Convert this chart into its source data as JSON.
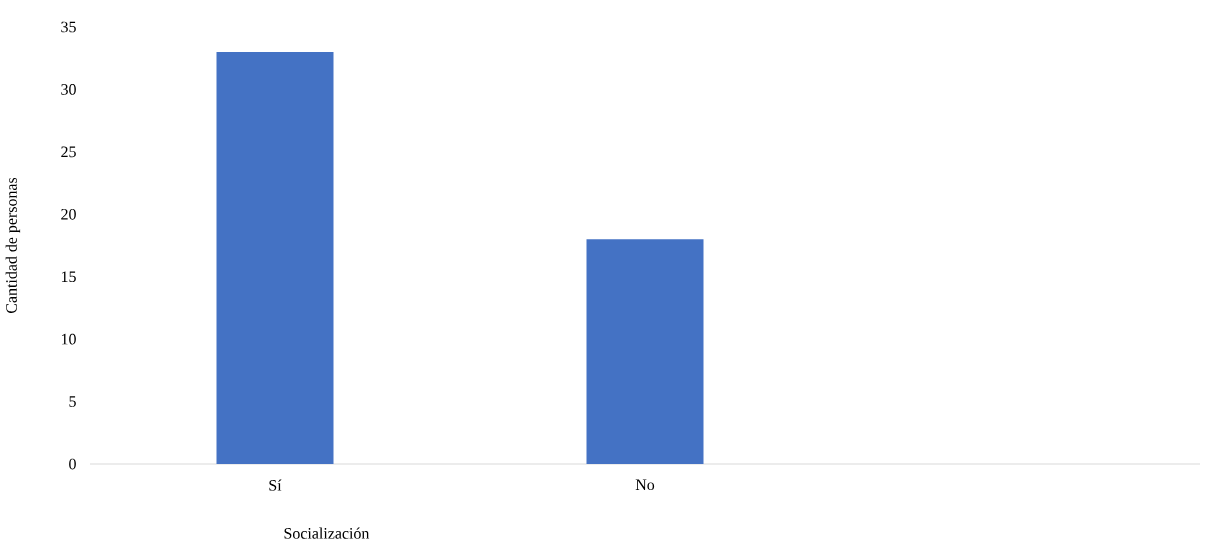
{
  "chart_data": {
    "type": "bar",
    "xlabel": "Socialización",
    "ylabel": "Cantidad de personas",
    "categories": [
      "Sí",
      "No",
      null
    ],
    "values": [
      33,
      18,
      null
    ],
    "color": "#4472c4",
    "ylim": [
      0,
      35
    ],
    "yticks": [
      0,
      5,
      10,
      15,
      20,
      25,
      30,
      35
    ]
  }
}
